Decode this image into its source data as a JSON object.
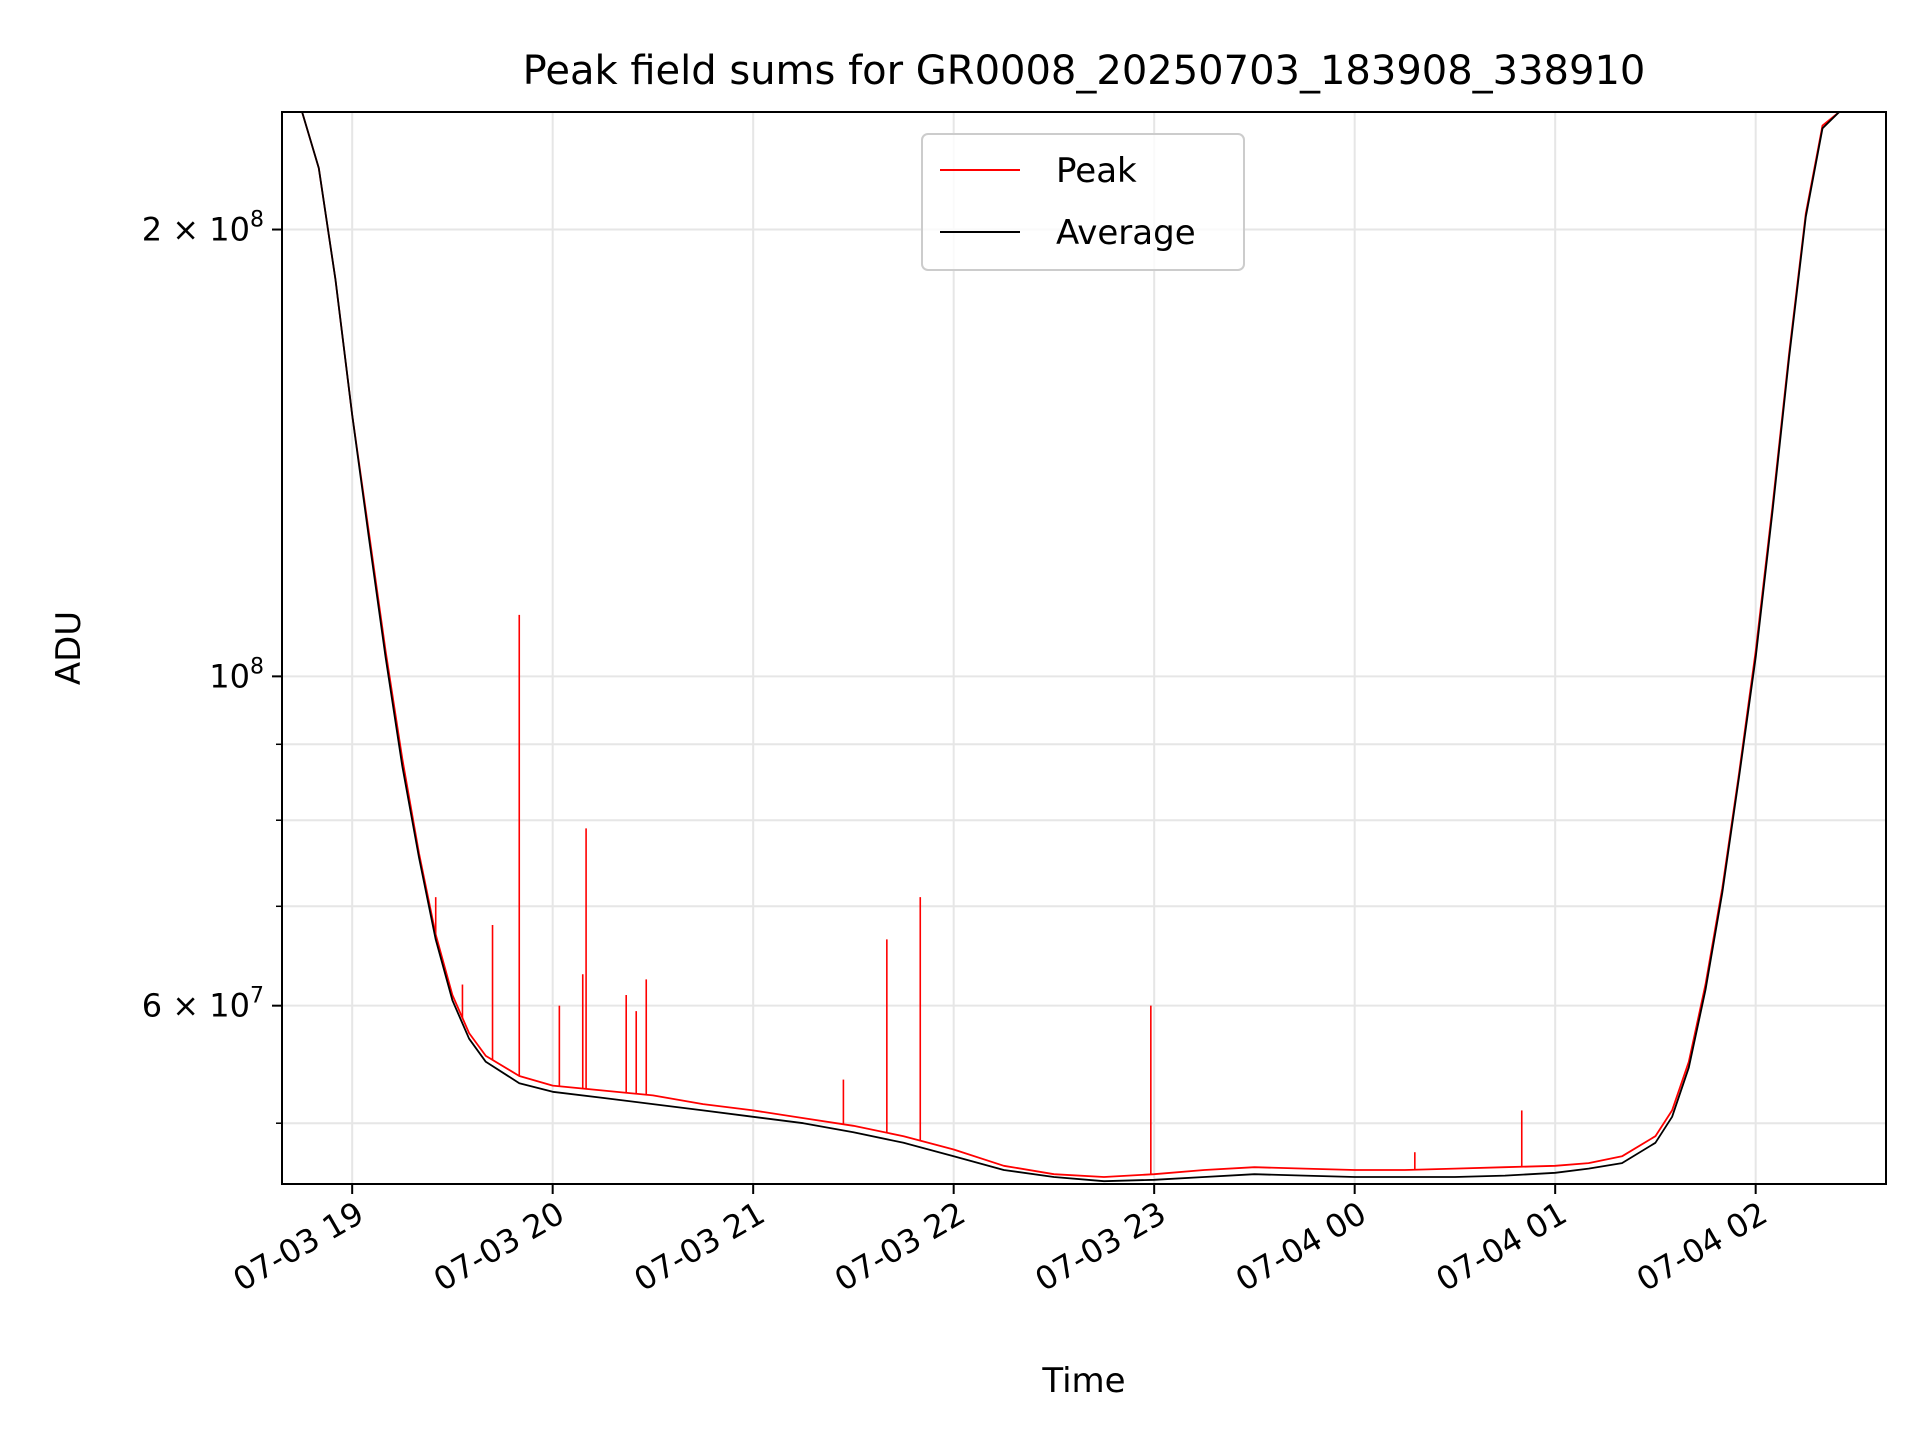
{
  "chart_data": {
    "type": "line",
    "title": "Peak field sums for GR0008_20250703_183908_338910",
    "xlabel": "Time",
    "ylabel": "ADU",
    "yscale": "log",
    "grid": true,
    "legend_position": "top-center",
    "x_range": [
      "2025-07-03 18:39",
      "2025-07-04 02:39"
    ],
    "y_range": [
      45500000,
      240000000
    ],
    "x_ticks": [
      {
        "t": "2025-07-03 19:00",
        "label": "07-03 19"
      },
      {
        "t": "2025-07-03 20:00",
        "label": "07-03 20"
      },
      {
        "t": "2025-07-03 21:00",
        "label": "07-03 21"
      },
      {
        "t": "2025-07-03 22:00",
        "label": "07-03 22"
      },
      {
        "t": "2025-07-03 23:00",
        "label": "07-03 23"
      },
      {
        "t": "2025-07-04 00:00",
        "label": "07-04 00"
      },
      {
        "t": "2025-07-04 01:00",
        "label": "07-04 01"
      },
      {
        "t": "2025-07-04 02:00",
        "label": "07-04 02"
      }
    ],
    "y_major_ticks": [
      {
        "v": 60000000,
        "base": "6 × 10",
        "exp": "7"
      },
      {
        "v": 100000000,
        "base": "10",
        "exp": "8"
      },
      {
        "v": 200000000,
        "base": "2 × 10",
        "exp": "8"
      }
    ],
    "y_minor_ticks": [
      50000000,
      70000000,
      80000000,
      90000000
    ],
    "series": [
      {
        "name": "Peak",
        "color": "#ff0000",
        "x": [
          "2025-07-03 18:39",
          "2025-07-03 18:45",
          "2025-07-03 18:50",
          "2025-07-03 18:55",
          "2025-07-03 19:00",
          "2025-07-03 19:05",
          "2025-07-03 19:10",
          "2025-07-03 19:15",
          "2025-07-03 19:20",
          "2025-07-03 19:25",
          "2025-07-03 19:30",
          "2025-07-03 19:35",
          "2025-07-03 19:40",
          "2025-07-03 19:50",
          "2025-07-03 20:00",
          "2025-07-03 20:15",
          "2025-07-03 20:30",
          "2025-07-03 20:45",
          "2025-07-03 21:00",
          "2025-07-03 21:15",
          "2025-07-03 21:30",
          "2025-07-03 21:45",
          "2025-07-03 22:00",
          "2025-07-03 22:15",
          "2025-07-03 22:30",
          "2025-07-03 22:45",
          "2025-07-03 23:00",
          "2025-07-03 23:15",
          "2025-07-03 23:30",
          "2025-07-03 23:45",
          "2025-07-04 00:00",
          "2025-07-04 00:15",
          "2025-07-04 00:30",
          "2025-07-04 00:45",
          "2025-07-04 01:00",
          "2025-07-04 01:10",
          "2025-07-04 01:20",
          "2025-07-04 01:30",
          "2025-07-04 01:35",
          "2025-07-04 01:40",
          "2025-07-04 01:45",
          "2025-07-04 01:50",
          "2025-07-04 01:55",
          "2025-07-04 02:00",
          "2025-07-04 02:05",
          "2025-07-04 02:10",
          "2025-07-04 02:15",
          "2025-07-04 02:20",
          "2025-07-04 02:25",
          "2025-07-04 02:30"
        ],
        "values": [
          240000000,
          240000000,
          220000000,
          185000000,
          150000000,
          125000000,
          104000000,
          88000000,
          76000000,
          67000000,
          61000000,
          57500000,
          55500000,
          53800000,
          53000000,
          52600000,
          52200000,
          51500000,
          51000000,
          50400000,
          49800000,
          49000000,
          48000000,
          46800000,
          46200000,
          46000000,
          46200000,
          46500000,
          46700000,
          46600000,
          46500000,
          46500000,
          46600000,
          46700000,
          46800000,
          47000000,
          47500000,
          49000000,
          51000000,
          55000000,
          62000000,
          72000000,
          86000000,
          104000000,
          130000000,
          165000000,
          205000000,
          235000000,
          240000000,
          240000000
        ],
        "spikes": [
          {
            "t": "2025-07-03 19:25",
            "v": 71000000
          },
          {
            "t": "2025-07-03 19:33",
            "v": 62000000
          },
          {
            "t": "2025-07-03 19:42",
            "v": 68000000
          },
          {
            "t": "2025-07-03 19:50",
            "v": 110000000
          },
          {
            "t": "2025-07-03 20:02",
            "v": 60000000
          },
          {
            "t": "2025-07-03 20:09",
            "v": 63000000
          },
          {
            "t": "2025-07-03 20:10",
            "v": 79000000
          },
          {
            "t": "2025-07-03 20:22",
            "v": 61000000
          },
          {
            "t": "2025-07-03 20:25",
            "v": 59500000
          },
          {
            "t": "2025-07-03 20:28",
            "v": 62500000
          },
          {
            "t": "2025-07-03 21:27",
            "v": 53500000
          },
          {
            "t": "2025-07-03 21:40",
            "v": 66500000
          },
          {
            "t": "2025-07-03 21:50",
            "v": 71000000
          },
          {
            "t": "2025-07-03 22:59",
            "v": 60000000
          },
          {
            "t": "2025-07-04 00:18",
            "v": 47800000
          },
          {
            "t": "2025-07-04 00:50",
            "v": 51000000
          }
        ]
      },
      {
        "name": "Average",
        "color": "#000000",
        "x": [
          "2025-07-03 18:39",
          "2025-07-03 18:45",
          "2025-07-03 18:50",
          "2025-07-03 18:55",
          "2025-07-03 19:00",
          "2025-07-03 19:05",
          "2025-07-03 19:10",
          "2025-07-03 19:15",
          "2025-07-03 19:20",
          "2025-07-03 19:25",
          "2025-07-03 19:30",
          "2025-07-03 19:35",
          "2025-07-03 19:40",
          "2025-07-03 19:50",
          "2025-07-03 20:00",
          "2025-07-03 20:15",
          "2025-07-03 20:30",
          "2025-07-03 20:45",
          "2025-07-03 21:00",
          "2025-07-03 21:15",
          "2025-07-03 21:30",
          "2025-07-03 21:45",
          "2025-07-03 22:00",
          "2025-07-03 22:15",
          "2025-07-03 22:30",
          "2025-07-03 22:45",
          "2025-07-03 23:00",
          "2025-07-03 23:15",
          "2025-07-03 23:30",
          "2025-07-03 23:45",
          "2025-07-04 00:00",
          "2025-07-04 00:15",
          "2025-07-04 00:30",
          "2025-07-04 00:45",
          "2025-07-04 01:00",
          "2025-07-04 01:10",
          "2025-07-04 01:20",
          "2025-07-04 01:30",
          "2025-07-04 01:35",
          "2025-07-04 01:40",
          "2025-07-04 01:45",
          "2025-07-04 01:50",
          "2025-07-04 01:55",
          "2025-07-04 02:00",
          "2025-07-04 02:05",
          "2025-07-04 02:10",
          "2025-07-04 02:15",
          "2025-07-04 02:20",
          "2025-07-04 02:25",
          "2025-07-04 02:30"
        ],
        "values": [
          240000000,
          240000000,
          220000000,
          185000000,
          150000000,
          124000000,
          103000000,
          87000000,
          75500000,
          66500000,
          60500000,
          57000000,
          55000000,
          53200000,
          52500000,
          52000000,
          51500000,
          51000000,
          50500000,
          50000000,
          49300000,
          48500000,
          47500000,
          46500000,
          46000000,
          45700000,
          45800000,
          46000000,
          46200000,
          46100000,
          46000000,
          46000000,
          46000000,
          46100000,
          46300000,
          46600000,
          47000000,
          48500000,
          50500000,
          54500000,
          61500000,
          71500000,
          85500000,
          103000000,
          129000000,
          164000000,
          204000000,
          234000000,
          240000000,
          240000000
        ]
      }
    ]
  }
}
